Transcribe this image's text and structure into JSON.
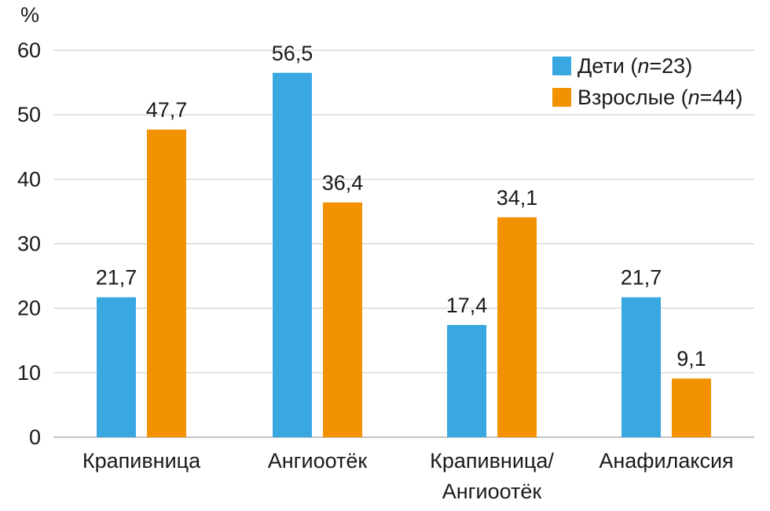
{
  "chart_data": {
    "type": "bar",
    "y_unit_label": "%",
    "categories": [
      [
        "Крапивница"
      ],
      [
        "Ангиоотёк"
      ],
      [
        "Крапивница/",
        "Ангиоотёк"
      ],
      [
        "Анафилаксия"
      ]
    ],
    "series": [
      {
        "name_parts": [
          "Дети (",
          "n",
          "=23)"
        ],
        "color": "#3aa8e0",
        "values": [
          21.7,
          56.5,
          17.4,
          21.7
        ],
        "labels": [
          "21,7",
          "56,5",
          "17,4",
          "21,7"
        ]
      },
      {
        "name_parts": [
          "Взрослые (",
          "n",
          "=44)"
        ],
        "color": "#f39200",
        "values": [
          47.7,
          36.4,
          34.1,
          9.1
        ],
        "labels": [
          "47,7",
          "36,4",
          "34,1",
          "9,1"
        ]
      }
    ],
    "ylim": [
      0,
      60
    ],
    "yticks": [
      "0",
      "10",
      "20",
      "30",
      "40",
      "50",
      "60"
    ],
    "grid": true,
    "legend": "top-right"
  }
}
